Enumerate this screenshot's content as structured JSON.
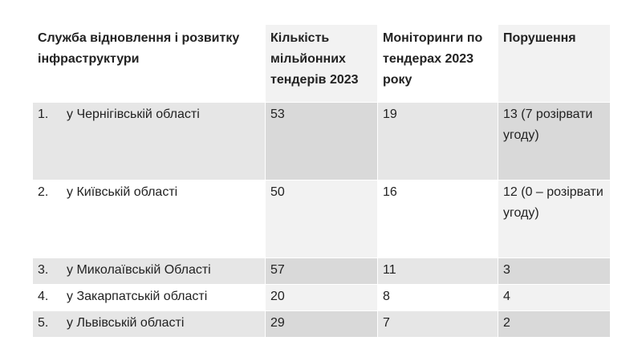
{
  "table": {
    "headers": [
      "Служба відновлення і розвитку інфраструктури",
      "Кількість мільйонних тендерів 2023",
      "Моніторинги по тендерах 2023 року",
      "Порушення"
    ],
    "rows": [
      {
        "num": "1.",
        "name": "у Чернігівській області",
        "tenders": "53",
        "monitorings": "19",
        "violations": "13 (7 розірвати угоду)"
      },
      {
        "num": "2.",
        "name": "у Київській області",
        "tenders": "50",
        "monitorings": "16",
        "violations": "12 (0 – розірвати угоду)"
      },
      {
        "num": "3.",
        "name": "у Миколаївській Області",
        "tenders": "57",
        "monitorings": "11",
        "violations": "3"
      },
      {
        "num": "4.",
        "name": "у Закарпатській області",
        "tenders": "20",
        "monitorings": "8",
        "violations": "4"
      },
      {
        "num": "5.",
        "name": "у Львівській області",
        "tenders": "29",
        "monitorings": "7",
        "violations": "2"
      }
    ]
  }
}
